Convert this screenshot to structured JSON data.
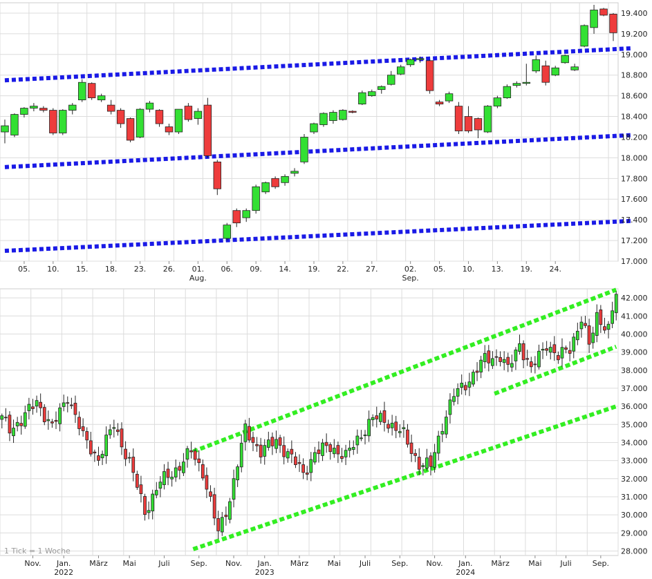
{
  "chart_data": [
    {
      "type": "candlestick",
      "id": "daily",
      "colors": {
        "up": "#33e033",
        "down": "#ee3c3c",
        "outline": "#222222",
        "trend": "#1a1ae6",
        "grid": "#dcdcdc"
      },
      "ylim": [
        17000,
        19500
      ],
      "y_ticks": [
        17000,
        17200,
        17400,
        17600,
        17800,
        18000,
        18200,
        18400,
        18600,
        18800,
        19000,
        19200,
        19400
      ],
      "y_tick_labels": [
        "17.000",
        "17.200",
        "17.400",
        "17.600",
        "17.800",
        "18.000",
        "18.200",
        "18.400",
        "18.600",
        "18.800",
        "19.000",
        "19.200",
        "19.400"
      ],
      "x_ticks": [
        {
          "index": 2,
          "label": "05."
        },
        {
          "index": 5,
          "label": "10."
        },
        {
          "index": 8,
          "label": "15."
        },
        {
          "index": 11,
          "label": "18."
        },
        {
          "index": 14,
          "label": "23."
        },
        {
          "index": 17,
          "label": "26."
        },
        {
          "index": 20,
          "label": "01.",
          "sub": "Aug."
        },
        {
          "index": 23,
          "label": "06."
        },
        {
          "index": 26,
          "label": "09."
        },
        {
          "index": 29,
          "label": "14."
        },
        {
          "index": 32,
          "label": "19."
        },
        {
          "index": 35,
          "label": "22."
        },
        {
          "index": 38,
          "label": "27."
        },
        {
          "index": 42,
          "label": "02.",
          "sub": "Sep."
        },
        {
          "index": 45,
          "label": "05."
        },
        {
          "index": 48,
          "label": "10."
        },
        {
          "index": 51,
          "label": "13."
        },
        {
          "index": 54,
          "label": "19."
        },
        {
          "index": 57,
          "label": "24."
        }
      ],
      "candles": [
        [
          18250,
          18370,
          18140,
          18310
        ],
        [
          18220,
          18430,
          18200,
          18420
        ],
        [
          18420,
          18490,
          18390,
          18480
        ],
        [
          18480,
          18530,
          18450,
          18500
        ],
        [
          18480,
          18500,
          18440,
          18460
        ],
        [
          18460,
          18480,
          18220,
          18240
        ],
        [
          18240,
          18470,
          18220,
          18460
        ],
        [
          18460,
          18530,
          18420,
          18510
        ],
        [
          18560,
          18760,
          18540,
          18730
        ],
        [
          18720,
          18730,
          18560,
          18580
        ],
        [
          18560,
          18620,
          18540,
          18600
        ],
        [
          18510,
          18560,
          18420,
          18450
        ],
        [
          18460,
          18480,
          18290,
          18330
        ],
        [
          18380,
          18390,
          18150,
          18170
        ],
        [
          18200,
          18480,
          18190,
          18470
        ],
        [
          18470,
          18550,
          18440,
          18530
        ],
        [
          18460,
          18470,
          18300,
          18330
        ],
        [
          18300,
          18330,
          18220,
          18250
        ],
        [
          18250,
          18470,
          18230,
          18470
        ],
        [
          18500,
          18530,
          18350,
          18370
        ],
        [
          18380,
          18480,
          18320,
          18450
        ],
        [
          18510,
          18580,
          18000,
          18020
        ],
        [
          17960,
          17980,
          17640,
          17700
        ],
        [
          17220,
          17370,
          17200,
          17350
        ],
        [
          17490,
          17510,
          17330,
          17370
        ],
        [
          17420,
          17510,
          17380,
          17490
        ],
        [
          17490,
          17740,
          17460,
          17720
        ],
        [
          17670,
          17770,
          17650,
          17760
        ],
        [
          17800,
          17820,
          17700,
          17720
        ],
        [
          17760,
          17840,
          17730,
          17820
        ],
        [
          17850,
          17900,
          17820,
          17870
        ],
        [
          17960,
          18230,
          17940,
          18200
        ],
        [
          18250,
          18340,
          18230,
          18330
        ],
        [
          18320,
          18440,
          18300,
          18430
        ],
        [
          18360,
          18460,
          18330,
          18440
        ],
        [
          18370,
          18470,
          18360,
          18460
        ],
        [
          18450,
          18460,
          18430,
          18440
        ],
        [
          18520,
          18650,
          18510,
          18630
        ],
        [
          18600,
          18660,
          18590,
          18640
        ],
        [
          18660,
          18700,
          18620,
          18690
        ],
        [
          18710,
          18840,
          18700,
          18800
        ],
        [
          18810,
          18900,
          18800,
          18880
        ],
        [
          18900,
          18960,
          18880,
          18950
        ],
        [
          18950,
          18980,
          18920,
          18960
        ],
        [
          18940,
          18950,
          18620,
          18650
        ],
        [
          18540,
          18560,
          18500,
          18520
        ],
        [
          18550,
          18640,
          18530,
          18620
        ],
        [
          18500,
          18540,
          18230,
          18260
        ],
        [
          18400,
          18500,
          18240,
          18260
        ],
        [
          18380,
          18390,
          18190,
          18270
        ],
        [
          18250,
          18510,
          18240,
          18500
        ],
        [
          18500,
          18600,
          18480,
          18580
        ],
        [
          18580,
          18710,
          18570,
          18690
        ],
        [
          18700,
          18740,
          18680,
          18720
        ],
        [
          18720,
          18910,
          18700,
          18730
        ],
        [
          18840,
          18990,
          18820,
          18950
        ],
        [
          18890,
          18940,
          18700,
          18730
        ],
        [
          18800,
          18890,
          18790,
          18870
        ],
        [
          18920,
          19000,
          18910,
          18990
        ],
        [
          18850,
          18910,
          18840,
          18880
        ],
        [
          19080,
          19290,
          19070,
          19280
        ],
        [
          19260,
          19480,
          19200,
          19430
        ],
        [
          19440,
          19450,
          19370,
          19380
        ],
        [
          19390,
          19400,
          19130,
          19210
        ]
      ],
      "trend_lines": [
        [
          0.5,
          17100,
          65.5,
          17390
        ],
        [
          0.5,
          17910,
          65.5,
          18220
        ],
        [
          0.5,
          18750,
          65.5,
          19060
        ]
      ]
    },
    {
      "type": "candlestick",
      "id": "weekly",
      "colors": {
        "up": "#33e033",
        "down": "#ee3c3c",
        "outline": "#222222",
        "trend": "#33ee22",
        "grid": "#dcdcdc"
      },
      "ylim": [
        27750,
        42500
      ],
      "y_ticks": [
        28000,
        29000,
        30000,
        31000,
        32000,
        33000,
        34000,
        35000,
        36000,
        37000,
        38000,
        39000,
        40000,
        41000,
        42000
      ],
      "y_tick_labels": [
        "28.000",
        "29.000",
        "30.000",
        "31.000",
        "32.000",
        "33.000",
        "34.000",
        "35.000",
        "36.000",
        "37.000",
        "38.000",
        "39.000",
        "40.000",
        "41.000",
        "42.000"
      ],
      "x_ticks": [
        {
          "index": 8,
          "label": "Nov."
        },
        {
          "index": 16,
          "label": "Jan.",
          "year": "2022"
        },
        {
          "index": 25,
          "label": "März"
        },
        {
          "index": 33,
          "label": "Mai"
        },
        {
          "index": 42,
          "label": "Juli"
        },
        {
          "index": 51,
          "label": "Sep."
        },
        {
          "index": 60,
          "label": "Nov."
        },
        {
          "index": 68,
          "label": "Jan.",
          "year": "2023"
        },
        {
          "index": 77,
          "label": "März"
        },
        {
          "index": 86,
          "label": "Mai"
        },
        {
          "index": 94,
          "label": "Juli"
        },
        {
          "index": 103,
          "label": "Sep."
        },
        {
          "index": 112,
          "label": "Nov."
        },
        {
          "index": 120,
          "label": "Jan.",
          "year": "2024"
        },
        {
          "index": 129,
          "label": "März"
        },
        {
          "index": 138,
          "label": "Mai"
        },
        {
          "index": 146,
          "label": "Juli"
        },
        {
          "index": 155,
          "label": "Sep."
        }
      ],
      "anchors": [
        [
          0,
          35300
        ],
        [
          2,
          34800
        ],
        [
          5,
          35200
        ],
        [
          9,
          36300
        ],
        [
          13,
          34800
        ],
        [
          17,
          36600
        ],
        [
          21,
          34300
        ],
        [
          25,
          33100
        ],
        [
          29,
          35000
        ],
        [
          33,
          32900
        ],
        [
          37,
          30200
        ],
        [
          41,
          31800
        ],
        [
          46,
          32700
        ],
        [
          49,
          33500
        ],
        [
          52,
          32400
        ],
        [
          56,
          29000
        ],
        [
          59,
          30900
        ],
        [
          63,
          34700
        ],
        [
          67,
          33500
        ],
        [
          71,
          34100
        ],
        [
          74,
          33400
        ],
        [
          78,
          32300
        ],
        [
          81,
          33400
        ],
        [
          85,
          33800
        ],
        [
          89,
          33200
        ],
        [
          92,
          34200
        ],
        [
          96,
          35300
        ],
        [
          99,
          35300
        ],
        [
          104,
          34400
        ],
        [
          108,
          32800
        ],
        [
          111,
          32700
        ],
        [
          114,
          35000
        ],
        [
          117,
          36600
        ],
        [
          121,
          37500
        ],
        [
          125,
          38600
        ],
        [
          129,
          38800
        ],
        [
          131,
          38000
        ],
        [
          134,
          39500
        ],
        [
          137,
          38000
        ],
        [
          141,
          39500
        ],
        [
          144,
          38700
        ],
        [
          147,
          39200
        ],
        [
          150,
          40900
        ],
        [
          152,
          39300
        ],
        [
          154,
          41000
        ],
        [
          157,
          40300
        ],
        [
          159,
          42200
        ]
      ],
      "trend_lines": [
        [
          50,
          33500,
          159.5,
          42450
        ],
        [
          128,
          36700,
          159.5,
          39300
        ],
        [
          50,
          28100,
          159.5,
          36000
        ]
      ],
      "note": "1 Tick = 1 Woche"
    }
  ]
}
